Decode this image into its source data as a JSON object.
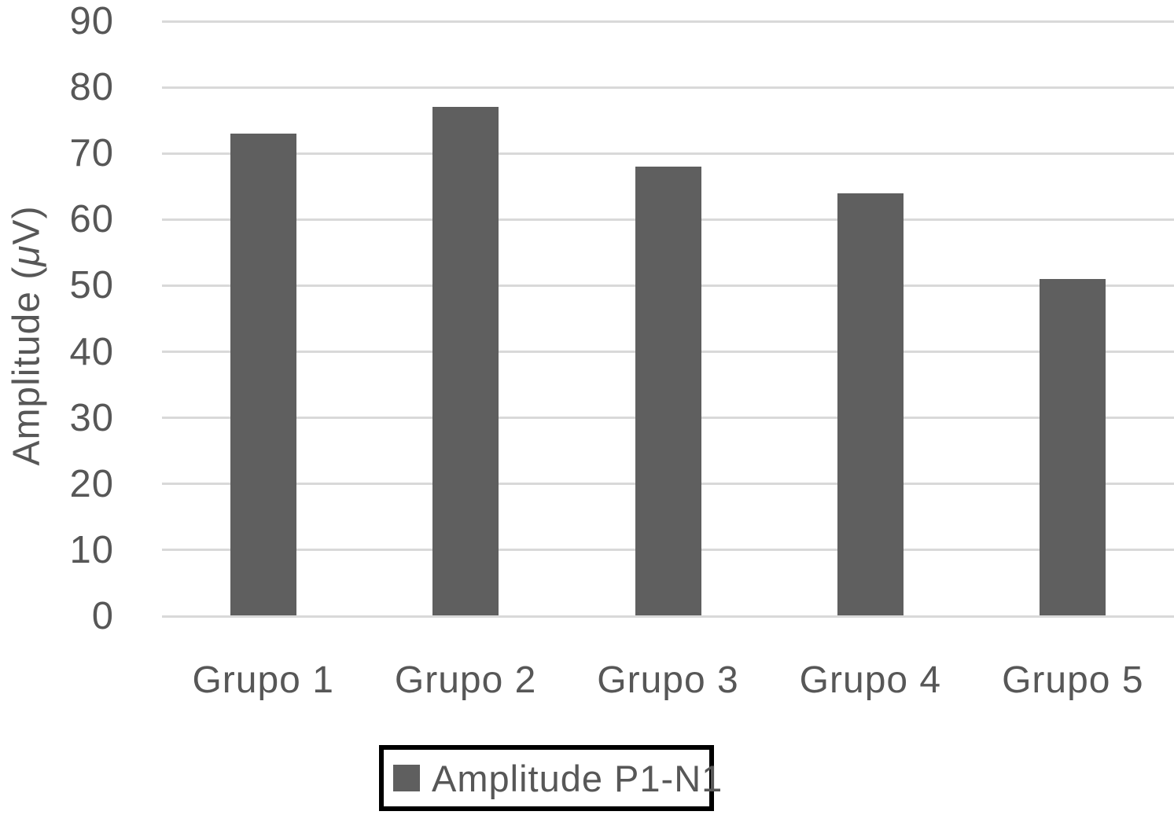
{
  "chart_data": {
    "type": "bar",
    "title": "",
    "xlabel": "",
    "ylabel": "Amplitude (μV)",
    "categories": [
      "Grupo 1",
      "Grupo 2",
      "Grupo 3",
      "Grupo 4",
      "Grupo 5"
    ],
    "series": [
      {
        "name": "Amplitude P1-N1",
        "values": [
          73,
          77,
          68,
          64,
          51
        ]
      }
    ],
    "ylim": [
      0,
      90
    ],
    "yticks": [
      0,
      10,
      20,
      30,
      40,
      50,
      60,
      70,
      80,
      90
    ],
    "grid": "horizontal",
    "legend_position": "bottom-center",
    "legend_label": "Amplitude P1-N1",
    "colors": {
      "bar": "#5f5f5f",
      "gridline": "#d9d9d9",
      "text": "#575757",
      "legend_border": "#000000",
      "background": "#ffffff"
    }
  }
}
